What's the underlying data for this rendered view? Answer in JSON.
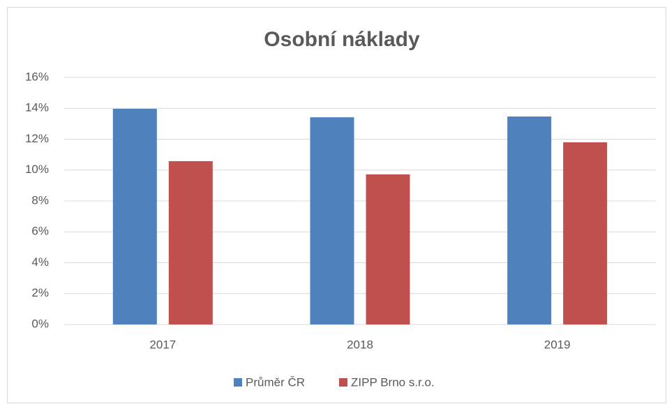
{
  "chart_data": {
    "type": "bar",
    "title": "Osobní náklady",
    "categories": [
      "2017",
      "2018",
      "2019"
    ],
    "series": [
      {
        "name": "Průměr ČR",
        "color": "#4f81bd",
        "values": [
          13.97,
          13.42,
          13.47
        ]
      },
      {
        "name": "ZIPP Brno s.r.o.",
        "color": "#c0504d",
        "values": [
          10.58,
          9.72,
          11.8
        ]
      }
    ],
    "ylim": [
      0,
      16
    ],
    "yticks": [
      {
        "value": 0,
        "label": "0%"
      },
      {
        "value": 2,
        "label": "2%"
      },
      {
        "value": 4,
        "label": "4%"
      },
      {
        "value": 6,
        "label": "6%"
      },
      {
        "value": 8,
        "label": "8%"
      },
      {
        "value": 10,
        "label": "10%"
      },
      {
        "value": 12,
        "label": "12%"
      },
      {
        "value": 14,
        "label": "14%"
      },
      {
        "value": 16,
        "label": "16%"
      }
    ],
    "grid": true,
    "legend": "bottom"
  }
}
